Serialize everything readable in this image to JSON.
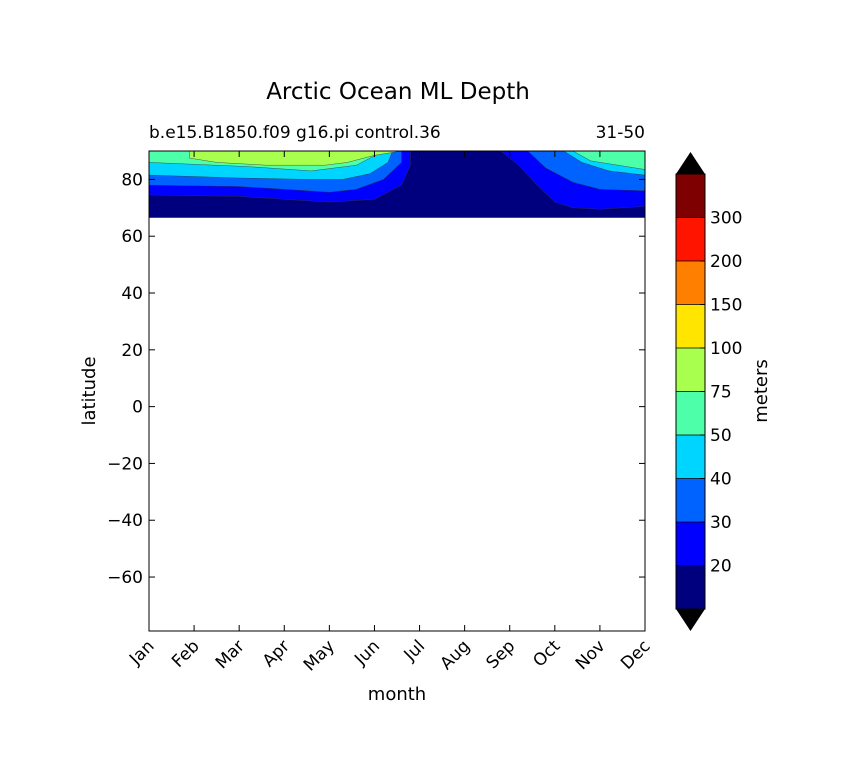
{
  "chart_data": {
    "type": "heatmap",
    "title": "Arctic Ocean ML Depth",
    "subtitle_left": "b.e15.B1850.f09 g16.pi control.36",
    "subtitle_right": "31-50",
    "xlabel": "month",
    "ylabel": "latitude",
    "x_ticks": [
      "Jan",
      "Feb",
      "Mar",
      "Apr",
      "May",
      "Jun",
      "Jul",
      "Aug",
      "Sep",
      "Oct",
      "Nov",
      "Dec"
    ],
    "ylim": [
      -79,
      90
    ],
    "y_ticks": [
      80,
      60,
      40,
      20,
      0,
      -20,
      -40,
      -60
    ],
    "y_tick_labels": [
      "80",
      "60",
      "40",
      "20",
      "0",
      "−20",
      "−40",
      "−60"
    ],
    "colorbar": {
      "label": "meters",
      "levels": [
        20,
        30,
        40,
        50,
        75,
        100,
        150,
        200,
        300
      ],
      "level_labels": [
        "20",
        "30",
        "40",
        "50",
        "75",
        "100",
        "150",
        "200",
        "300"
      ],
      "colors": [
        "#00007f",
        "#0000ff",
        "#0063ff",
        "#00d5ff",
        "#4effa9",
        "#a9ff4e",
        "#ffe500",
        "#ff7f00",
        "#ff1400",
        "#7f0000"
      ],
      "extend": "both",
      "under_color": "#000000",
      "over_color": "#000000"
    },
    "contour_bands": [
      {
        "level_index": 0,
        "comment_free": true,
        "points": [
          [
            0,
            90
          ],
          [
            11,
            90
          ],
          [
            11,
            66.5
          ],
          [
            0,
            66.5
          ]
        ]
      },
      {
        "level_index": 1,
        "points": [
          [
            0,
            74.5
          ],
          [
            2,
            74
          ],
          [
            3,
            73
          ],
          [
            4,
            72
          ],
          [
            5,
            73
          ],
          [
            5.6,
            78
          ],
          [
            5.8,
            85
          ],
          [
            5.8,
            90
          ],
          [
            0,
            90
          ]
        ]
      },
      {
        "level_index": 1,
        "points": [
          [
            7.8,
            90
          ],
          [
            8.2,
            85
          ],
          [
            8.6,
            78
          ],
          [
            9,
            72
          ],
          [
            9.4,
            70
          ],
          [
            10,
            69.5
          ],
          [
            11,
            70.5
          ],
          [
            11,
            90
          ]
        ]
      },
      {
        "level_index": 2,
        "points": [
          [
            0,
            78
          ],
          [
            2,
            77.5
          ],
          [
            3,
            76.5
          ],
          [
            4,
            75.5
          ],
          [
            4.6,
            76.5
          ],
          [
            5.2,
            80
          ],
          [
            5.6,
            86
          ],
          [
            5.6,
            90
          ],
          [
            0,
            90
          ]
        ]
      },
      {
        "level_index": 2,
        "points": [
          [
            8.4,
            90
          ],
          [
            8.8,
            84
          ],
          [
            9.4,
            79
          ],
          [
            10,
            76.5
          ],
          [
            11,
            76
          ],
          [
            11,
            90
          ]
        ]
      },
      {
        "level_index": 3,
        "points": [
          [
            0,
            81.5
          ],
          [
            2,
            80.5
          ],
          [
            3.5,
            80
          ],
          [
            4.3,
            80
          ],
          [
            4.9,
            82
          ],
          [
            5.3,
            86
          ],
          [
            5.4,
            90
          ],
          [
            0,
            90
          ]
        ]
      },
      {
        "level_index": 3,
        "points": [
          [
            9.2,
            90
          ],
          [
            9.6,
            86
          ],
          [
            10.2,
            83
          ],
          [
            11,
            81.5
          ],
          [
            11,
            90
          ]
        ]
      },
      {
        "level_index": 4,
        "points": [
          [
            0,
            86
          ],
          [
            2.2,
            84.5
          ],
          [
            3.6,
            83
          ],
          [
            4.6,
            85
          ],
          [
            5.2,
            90
          ],
          [
            0,
            90
          ]
        ]
      },
      {
        "level_index": 4,
        "points": [
          [
            9.4,
            90
          ],
          [
            9.8,
            86.5
          ],
          [
            10.4,
            85
          ],
          [
            11,
            83.5
          ],
          [
            11,
            90
          ]
        ]
      },
      {
        "level_index": 5,
        "points": [
          [
            0.9,
            90
          ],
          [
            0.9,
            87.5
          ],
          [
            1.5,
            86
          ],
          [
            2.6,
            85
          ],
          [
            3.9,
            85
          ],
          [
            4.4,
            86
          ],
          [
            5,
            88.5
          ],
          [
            5.6,
            90
          ]
        ]
      }
    ]
  }
}
